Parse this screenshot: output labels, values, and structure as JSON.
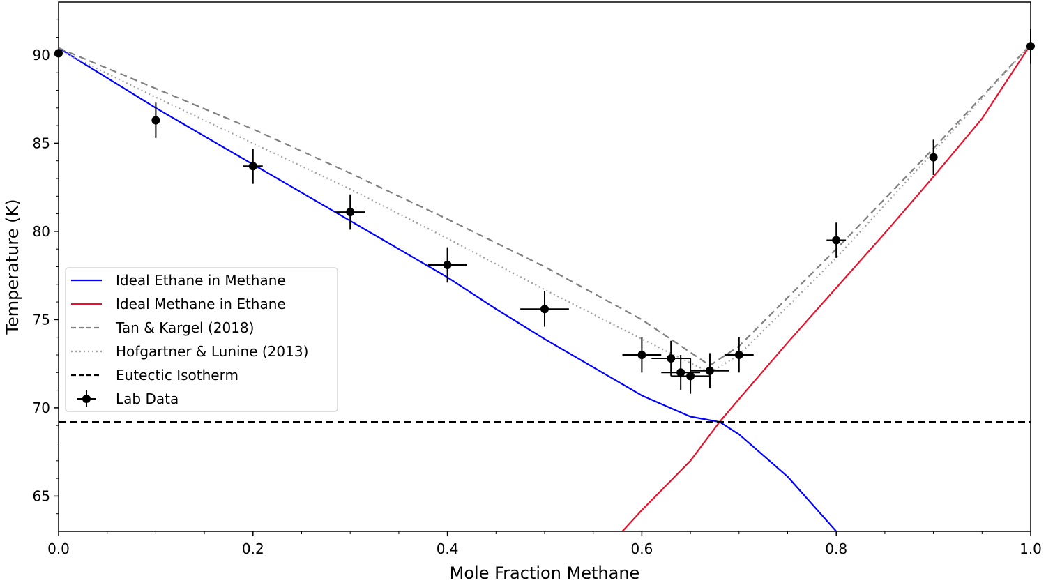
{
  "chart_data": {
    "type": "line",
    "title": "",
    "xlabel": "Mole Fraction Methane",
    "ylabel": "Temperature (K)",
    "xlim": [
      0.0,
      1.0
    ],
    "ylim": [
      63.0,
      93.0
    ],
    "grid": false,
    "legend_placement": "center-left",
    "x_ticks": [
      "0.0",
      "0.2",
      "0.4",
      "0.6",
      "0.8",
      "1.0"
    ],
    "y_ticks": [
      "65",
      "70",
      "75",
      "80",
      "85",
      "90"
    ],
    "series": [
      {
        "name": "Ideal Ethane in Methane",
        "style": "solid",
        "color": "#0000ff",
        "x": [
          0.0,
          0.05,
          0.1,
          0.15,
          0.2,
          0.25,
          0.3,
          0.35,
          0.4,
          0.45,
          0.5,
          0.55,
          0.6,
          0.65,
          0.68,
          0.7,
          0.75,
          0.8
        ],
        "y": [
          90.4,
          88.7,
          87.0,
          85.4,
          83.8,
          82.2,
          80.6,
          79.0,
          77.4,
          75.6,
          73.9,
          72.3,
          70.7,
          69.5,
          69.2,
          68.5,
          66.1,
          63.0
        ]
      },
      {
        "name": "Ideal Methane in Ethane",
        "style": "solid",
        "color": "#e8102a",
        "x": [
          0.58,
          0.6,
          0.65,
          0.68,
          0.7,
          0.75,
          0.8,
          0.85,
          0.9,
          0.95,
          1.0
        ],
        "y": [
          63.0,
          64.2,
          67.0,
          69.2,
          70.5,
          73.7,
          76.8,
          79.9,
          83.1,
          86.4,
          90.6
        ]
      },
      {
        "name": "Tan & Kargel (2018)",
        "style": "dashed",
        "color": "#808080",
        "x": [
          0.0,
          0.1,
          0.2,
          0.3,
          0.4,
          0.5,
          0.6,
          0.67,
          0.7,
          0.8,
          0.9,
          1.0
        ],
        "y": [
          90.4,
          88.1,
          85.8,
          83.3,
          80.7,
          78.0,
          75.0,
          72.4,
          73.5,
          79.0,
          84.7,
          90.6
        ]
      },
      {
        "name": "Hofgartner & Lunine (2013)",
        "style": "dotted",
        "color": "#a0a0a0",
        "x": [
          0.0,
          0.1,
          0.2,
          0.3,
          0.4,
          0.5,
          0.6,
          0.67,
          0.7,
          0.8,
          0.9,
          1.0
        ],
        "y": [
          90.3,
          87.6,
          85.0,
          82.4,
          79.6,
          76.7,
          73.9,
          72.0,
          73.0,
          78.5,
          84.5,
          90.6
        ]
      },
      {
        "name": "Eutectic Isotherm",
        "style": "dashed",
        "color": "#000000",
        "x": [
          0.0,
          1.0
        ],
        "y": [
          69.2,
          69.2
        ]
      }
    ],
    "lab_data": {
      "name": "Lab Data",
      "color": "#000000",
      "points": [
        {
          "x": 0.0,
          "y": 90.1,
          "xerr": 0.0,
          "yerr": 0.0
        },
        {
          "x": 0.1,
          "y": 86.3,
          "xerr": 0.0,
          "yerr": 1.0
        },
        {
          "x": 0.2,
          "y": 83.7,
          "xerr": 0.01,
          "yerr": 1.0
        },
        {
          "x": 0.3,
          "y": 81.1,
          "xerr": 0.015,
          "yerr": 1.0
        },
        {
          "x": 0.4,
          "y": 78.1,
          "xerr": 0.02,
          "yerr": 1.0
        },
        {
          "x": 0.5,
          "y": 75.6,
          "xerr": 0.025,
          "yerr": 1.0
        },
        {
          "x": 0.6,
          "y": 73.0,
          "xerr": 0.02,
          "yerr": 1.0
        },
        {
          "x": 0.63,
          "y": 72.8,
          "xerr": 0.02,
          "yerr": 1.0
        },
        {
          "x": 0.64,
          "y": 72.0,
          "xerr": 0.02,
          "yerr": 1.0
        },
        {
          "x": 0.65,
          "y": 71.8,
          "xerr": 0.02,
          "yerr": 1.0
        },
        {
          "x": 0.67,
          "y": 72.1,
          "xerr": 0.02,
          "yerr": 1.0
        },
        {
          "x": 0.7,
          "y": 73.0,
          "xerr": 0.015,
          "yerr": 1.0
        },
        {
          "x": 0.8,
          "y": 79.5,
          "xerr": 0.01,
          "yerr": 1.0
        },
        {
          "x": 0.9,
          "y": 84.2,
          "xerr": 0.0,
          "yerr": 1.0
        },
        {
          "x": 1.0,
          "y": 90.5,
          "xerr": 0.0,
          "yerr": 1.0
        }
      ]
    }
  }
}
